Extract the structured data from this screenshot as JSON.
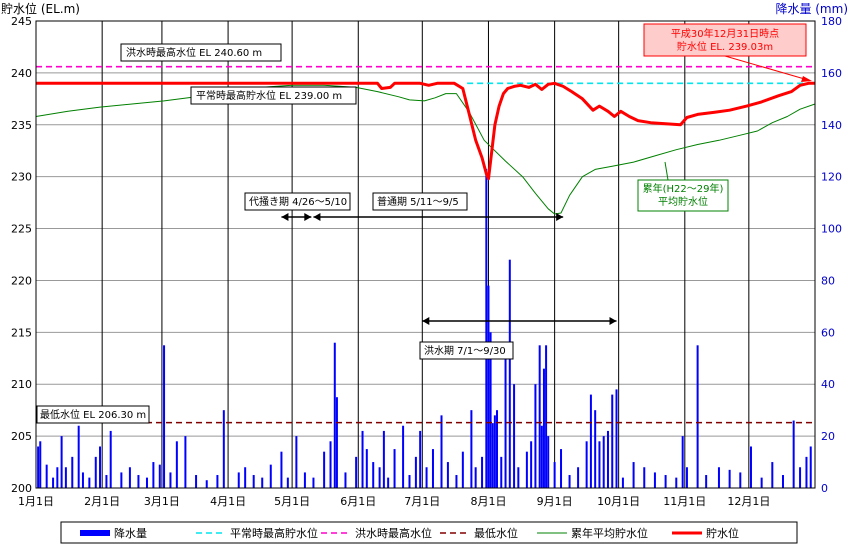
{
  "chart_data": {
    "type": "line",
    "title": "",
    "y_left": {
      "label": "貯水位 (EL.m)",
      "ylim": [
        200,
        245
      ],
      "ticks": [
        200,
        205,
        210,
        215,
        220,
        225,
        230,
        235,
        240,
        245
      ]
    },
    "y_right": {
      "label": "降水量 (mm)",
      "ylim": [
        0,
        180
      ],
      "ticks": [
        0,
        20,
        40,
        60,
        80,
        100,
        120,
        140,
        160,
        180
      ]
    },
    "x": {
      "xlim": [
        0,
        365
      ],
      "ticks": [
        {
          "label": "1月1日",
          "day": 0
        },
        {
          "label": "2月1日",
          "day": 31
        },
        {
          "label": "3月1日",
          "day": 59
        },
        {
          "label": "4月1日",
          "day": 90
        },
        {
          "label": "5月1日",
          "day": 120
        },
        {
          "label": "6月1日",
          "day": 151
        },
        {
          "label": "7月1日",
          "day": 181
        },
        {
          "label": "8月1日",
          "day": 212
        },
        {
          "label": "9月1日",
          "day": 243
        },
        {
          "label": "10月1日",
          "day": 273
        },
        {
          "label": "11月1日",
          "day": 304
        },
        {
          "label": "12月1日",
          "day": 334
        }
      ]
    },
    "grid": true,
    "legend_placement": "bottom",
    "series": [
      {
        "name": "降水量",
        "kind": "bar",
        "axis": "right",
        "color": "#0000ff",
        "points": [
          [
            1,
            16
          ],
          [
            2,
            18
          ],
          [
            5,
            9
          ],
          [
            8,
            4
          ],
          [
            10,
            8
          ],
          [
            12,
            20
          ],
          [
            14,
            8
          ],
          [
            17,
            12
          ],
          [
            20,
            24
          ],
          [
            22,
            6
          ],
          [
            25,
            4
          ],
          [
            28,
            12
          ],
          [
            30,
            16
          ],
          [
            33,
            5
          ],
          [
            35,
            22
          ],
          [
            40,
            6
          ],
          [
            44,
            8
          ],
          [
            48,
            5
          ],
          [
            52,
            4
          ],
          [
            55,
            10
          ],
          [
            58,
            9
          ],
          [
            60,
            55
          ],
          [
            63,
            6
          ],
          [
            66,
            18
          ],
          [
            70,
            20
          ],
          [
            75,
            5
          ],
          [
            80,
            3
          ],
          [
            85,
            5
          ],
          [
            88,
            30
          ],
          [
            95,
            6
          ],
          [
            98,
            8
          ],
          [
            102,
            5
          ],
          [
            106,
            4
          ],
          [
            110,
            9
          ],
          [
            115,
            14
          ],
          [
            118,
            4
          ],
          [
            122,
            20
          ],
          [
            126,
            6
          ],
          [
            130,
            4
          ],
          [
            135,
            14
          ],
          [
            138,
            18
          ],
          [
            140,
            56
          ],
          [
            141,
            35
          ],
          [
            145,
            6
          ],
          [
            150,
            12
          ],
          [
            153,
            22
          ],
          [
            155,
            15
          ],
          [
            158,
            10
          ],
          [
            161,
            8
          ],
          [
            163,
            22
          ],
          [
            165,
            4
          ],
          [
            168,
            15
          ],
          [
            172,
            24
          ],
          [
            175,
            5
          ],
          [
            178,
            12
          ],
          [
            180,
            22
          ],
          [
            183,
            8
          ],
          [
            186,
            15
          ],
          [
            190,
            28
          ],
          [
            193,
            10
          ],
          [
            197,
            5
          ],
          [
            200,
            14
          ],
          [
            204,
            30
          ],
          [
            206,
            8
          ],
          [
            209,
            12
          ],
          [
            211,
            123
          ],
          [
            212,
            78
          ],
          [
            213,
            60
          ],
          [
            214,
            25
          ],
          [
            215,
            28
          ],
          [
            216,
            30
          ],
          [
            218,
            12
          ],
          [
            220,
            52
          ],
          [
            222,
            88
          ],
          [
            224,
            40
          ],
          [
            226,
            8
          ],
          [
            230,
            14
          ],
          [
            232,
            18
          ],
          [
            234,
            40
          ],
          [
            236,
            55
          ],
          [
            237,
            24
          ],
          [
            238,
            46
          ],
          [
            239,
            55
          ],
          [
            240,
            20
          ],
          [
            243,
            10
          ],
          [
            246,
            15
          ],
          [
            250,
            5
          ],
          [
            254,
            8
          ],
          [
            258,
            18
          ],
          [
            260,
            36
          ],
          [
            262,
            30
          ],
          [
            264,
            18
          ],
          [
            266,
            20
          ],
          [
            268,
            22
          ],
          [
            270,
            36
          ],
          [
            272,
            38
          ],
          [
            275,
            4
          ],
          [
            280,
            10
          ],
          [
            285,
            8
          ],
          [
            290,
            6
          ],
          [
            295,
            5
          ],
          [
            300,
            4
          ],
          [
            303,
            20
          ],
          [
            305,
            8
          ],
          [
            310,
            55
          ],
          [
            314,
            5
          ],
          [
            320,
            8
          ],
          [
            325,
            7
          ],
          [
            330,
            6
          ],
          [
            335,
            16
          ],
          [
            340,
            4
          ],
          [
            345,
            10
          ],
          [
            350,
            5
          ],
          [
            355,
            26
          ],
          [
            358,
            8
          ],
          [
            361,
            12
          ],
          [
            363,
            16
          ]
        ]
      },
      {
        "name": "平常時最高貯水位",
        "kind": "hline",
        "axis": "left",
        "value": 239.0,
        "color": "#00e5ee",
        "dash": "6,4",
        "start_day": 202
      },
      {
        "name": "洪水時最高水位",
        "kind": "hline",
        "axis": "left",
        "value": 240.6,
        "color": "#ff00cc",
        "dash": "6,4"
      },
      {
        "name": "最低水位",
        "kind": "hline",
        "axis": "left",
        "value": 206.3,
        "color": "#800000",
        "dash": "6,4"
      },
      {
        "name": "累年平均貯水位",
        "kind": "line",
        "axis": "left",
        "color": "#008000",
        "width": 1,
        "points": [
          [
            0,
            235.8
          ],
          [
            15,
            236.3
          ],
          [
            30,
            236.7
          ],
          [
            45,
            237.0
          ],
          [
            60,
            237.3
          ],
          [
            75,
            237.7
          ],
          [
            90,
            238.1
          ],
          [
            105,
            238.6
          ],
          [
            120,
            238.8
          ],
          [
            135,
            238.8
          ],
          [
            150,
            238.6
          ],
          [
            160,
            238.2
          ],
          [
            170,
            237.7
          ],
          [
            175,
            237.4
          ],
          [
            182,
            237.3
          ],
          [
            187,
            237.6
          ],
          [
            192,
            238.0
          ],
          [
            197,
            238.0
          ],
          [
            203,
            236.2
          ],
          [
            210,
            233.5
          ],
          [
            220,
            231.5
          ],
          [
            228,
            230.0
          ],
          [
            234,
            228.4
          ],
          [
            240,
            226.9
          ],
          [
            243,
            226.4
          ],
          [
            246,
            226.5
          ],
          [
            250,
            228.2
          ],
          [
            256,
            230.0
          ],
          [
            262,
            230.7
          ],
          [
            270,
            231.0
          ],
          [
            280,
            231.4
          ],
          [
            290,
            232.0
          ],
          [
            300,
            232.6
          ],
          [
            310,
            233.1
          ],
          [
            320,
            233.5
          ],
          [
            330,
            234.0
          ],
          [
            338,
            234.4
          ],
          [
            345,
            235.2
          ],
          [
            352,
            235.8
          ],
          [
            358,
            236.5
          ],
          [
            365,
            237.0
          ]
        ]
      },
      {
        "name": "貯水位",
        "kind": "line",
        "axis": "left",
        "color": "#ff0000",
        "width": 3,
        "points": [
          [
            0,
            239.0
          ],
          [
            20,
            239.0
          ],
          [
            50,
            239.0
          ],
          [
            80,
            239.0
          ],
          [
            100,
            239.0
          ],
          [
            120,
            239.0
          ],
          [
            145,
            239.0
          ],
          [
            160,
            239.0
          ],
          [
            162,
            238.5
          ],
          [
            166,
            238.6
          ],
          [
            168,
            239.0
          ],
          [
            180,
            239.0
          ],
          [
            184,
            238.8
          ],
          [
            188,
            239.0
          ],
          [
            196,
            239.0
          ],
          [
            200,
            238.5
          ],
          [
            203,
            236.0
          ],
          [
            206,
            233.5
          ],
          [
            209,
            231.8
          ],
          [
            211,
            230.3
          ],
          [
            212,
            229.8
          ],
          [
            213,
            231.5
          ],
          [
            215,
            235.0
          ],
          [
            217,
            236.8
          ],
          [
            219,
            238.0
          ],
          [
            221,
            238.5
          ],
          [
            224,
            238.7
          ],
          [
            227,
            238.8
          ],
          [
            231,
            238.6
          ],
          [
            234,
            238.9
          ],
          [
            237,
            238.4
          ],
          [
            240,
            238.9
          ],
          [
            243,
            239.0
          ],
          [
            247,
            238.7
          ],
          [
            251,
            238.2
          ],
          [
            256,
            237.5
          ],
          [
            261,
            236.4
          ],
          [
            264,
            236.8
          ],
          [
            268,
            236.3
          ],
          [
            271,
            235.8
          ],
          [
            274,
            236.3
          ],
          [
            278,
            235.8
          ],
          [
            282,
            235.4
          ],
          [
            288,
            235.2
          ],
          [
            295,
            235.1
          ],
          [
            302,
            235.0
          ],
          [
            305,
            235.7
          ],
          [
            310,
            236.0
          ],
          [
            318,
            236.2
          ],
          [
            325,
            236.4
          ],
          [
            333,
            236.8
          ],
          [
            340,
            237.2
          ],
          [
            348,
            237.8
          ],
          [
            354,
            238.2
          ],
          [
            358,
            238.8
          ],
          [
            362,
            239.0
          ],
          [
            365,
            239.0
          ]
        ]
      }
    ],
    "annotations": [
      {
        "text": "洪水時最高水位  EL 240.60 m"
      },
      {
        "text": "平常時最高貯水位  EL 239.00 m"
      },
      {
        "text": "最低水位  EL 206.30 m"
      },
      {
        "text": "代掻き期  4/26〜5/10",
        "arrow_days": [
          115,
          129
        ]
      },
      {
        "text": "普通期  5/11〜9/5",
        "arrow_days": [
          130,
          247
        ]
      },
      {
        "text": "洪水期  7/1〜9/30",
        "arrow_days": [
          181,
          272
        ]
      },
      {
        "text_lines": [
          "累年(H22〜29年)",
          "平均貯水位"
        ]
      },
      {
        "text_lines": [
          "平成30年12月31日時点",
          "貯水位 EL. 239.03m"
        ]
      }
    ]
  }
}
